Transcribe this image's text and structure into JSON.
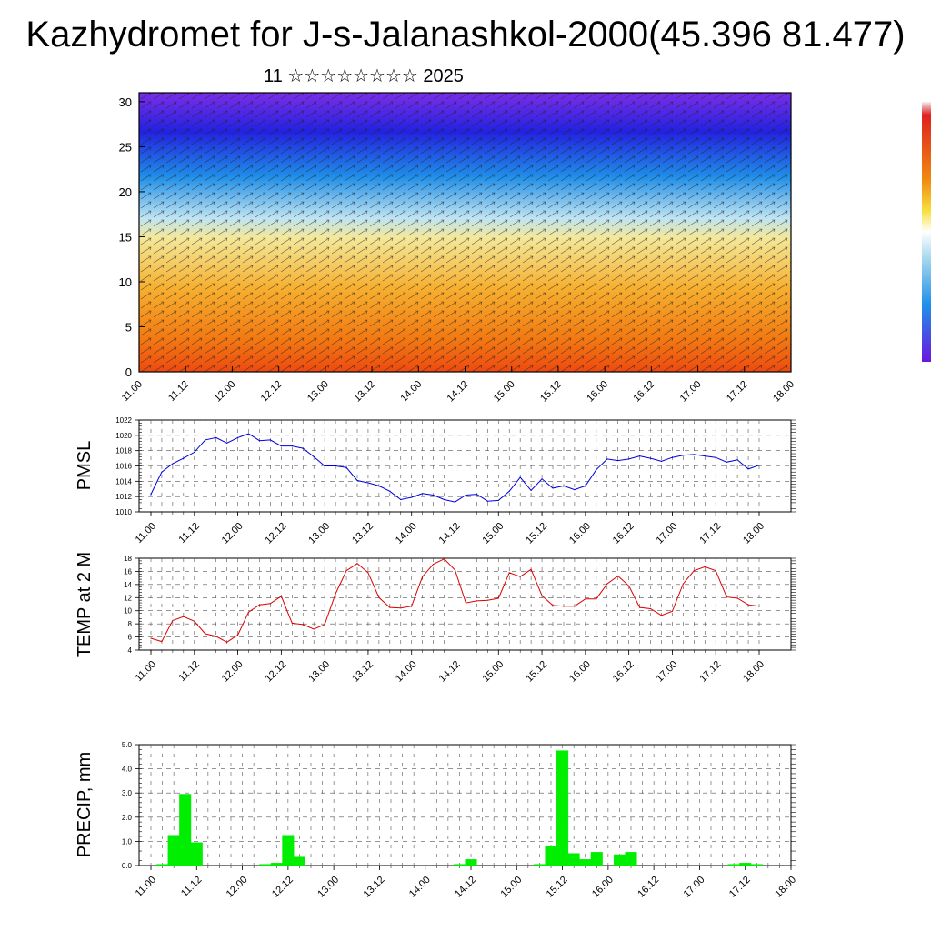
{
  "title": "Kazhydromet for J-s-Jalanashkol-2000(45.396 81.477)",
  "subtitle": "11 ☆☆☆☆☆☆☆☆ 2025",
  "colors": {
    "pmsl_line": "#0000dd",
    "temp_line": "#dd0000",
    "precip_bar": "#00ee00",
    "profile_high": "#6a16e0",
    "profile_mid": "#f0e8a0",
    "profile_low": "#f03a10"
  },
  "chart_data": [
    {
      "id": "profile",
      "type": "heatmap",
      "description_axis_y": "level",
      "ylim": [
        0,
        31
      ],
      "yticks": [
        0,
        5,
        10,
        15,
        20,
        25,
        30
      ],
      "xticks": [
        "11.00",
        "11.12",
        "12.00",
        "12.12",
        "13.00",
        "13.12",
        "14.00",
        "14.12",
        "15.00",
        "15.12",
        "16.00",
        "16.12",
        "17.00",
        "17.12",
        "18.00"
      ],
      "grid": false
    },
    {
      "id": "pmsl",
      "type": "line",
      "ylabel": "PMSL",
      "ylim": [
        1010,
        1022
      ],
      "yticks": [
        1010,
        1012,
        1014,
        1016,
        1018,
        1020,
        1022
      ],
      "xticks": [
        "11.00",
        "11.12",
        "12.00",
        "12.12",
        "13.00",
        "13.12",
        "14.00",
        "14.12",
        "15.00",
        "15.12",
        "16.00",
        "16.12",
        "17.00",
        "17.12",
        "18.00"
      ],
      "x_hours_step": 3,
      "values": [
        1012.3,
        1015.2,
        1016.3,
        1017.0,
        1017.8,
        1019.4,
        1019.7,
        1019.0,
        1019.7,
        1020.2,
        1019.3,
        1019.4,
        1018.6,
        1018.6,
        1018.3,
        1017.2,
        1016.0,
        1016.0,
        1015.8,
        1014.1,
        1013.8,
        1013.4,
        1012.7,
        1011.6,
        1011.9,
        1012.4,
        1012.2,
        1011.6,
        1011.3,
        1012.2,
        1012.3,
        1011.4,
        1011.5,
        1012.7,
        1014.5,
        1012.8,
        1014.3,
        1013.1,
        1013.4,
        1012.9,
        1013.4,
        1015.5,
        1016.9,
        1016.7,
        1016.9,
        1017.3,
        1017.0,
        1016.6,
        1017.1,
        1017.4,
        1017.5,
        1017.3,
        1017.1,
        1016.5,
        1016.8,
        1015.6,
        1016.1
      ],
      "grid": true
    },
    {
      "id": "temp",
      "type": "line",
      "ylabel": "TEMP at 2 M",
      "ylim": [
        4,
        18
      ],
      "yticks": [
        4,
        6,
        8,
        10,
        12,
        14,
        16,
        18
      ],
      "xticks": [
        "11.00",
        "11.12",
        "12.00",
        "12.12",
        "13.00",
        "13.12",
        "14.00",
        "14.12",
        "15.00",
        "15.12",
        "16.00",
        "16.12",
        "17.00",
        "17.12",
        "18.00"
      ],
      "x_hours_step": 3,
      "values": [
        5.8,
        5.3,
        8.5,
        9.1,
        8.4,
        6.5,
        6.1,
        5.2,
        6.3,
        9.8,
        10.9,
        11.1,
        12.2,
        8.1,
        7.9,
        7.2,
        7.9,
        12.6,
        16.1,
        17.2,
        15.8,
        12.0,
        10.5,
        10.4,
        10.7,
        15.2,
        17.1,
        17.9,
        16.2,
        11.2,
        11.5,
        11.6,
        11.9,
        15.8,
        15.2,
        16.3,
        12.3,
        10.8,
        10.7,
        10.7,
        11.8,
        11.8,
        14.1,
        15.3,
        13.8,
        10.5,
        10.3,
        9.3,
        9.9,
        14.1,
        16.1,
        16.7,
        16.1,
        12.1,
        11.9,
        10.9,
        10.7
      ],
      "grid": true
    },
    {
      "id": "precip",
      "type": "bar",
      "ylabel": "PRECIP, mm",
      "ylim": [
        0,
        5
      ],
      "yticks": [
        "0.0",
        "1.0",
        "2.0",
        "3.0",
        "4.0",
        "5.0"
      ],
      "xticks": [
        "11.00",
        "11.12",
        "12.00",
        "12.12",
        "13.00",
        "13.12",
        "14.00",
        "14.12",
        "15.00",
        "15.12",
        "16.00",
        "16.12",
        "17.00",
        "17.12",
        "18.00"
      ],
      "x_hours_step": 3,
      "values": [
        0,
        0.05,
        1.25,
        2.95,
        0.95,
        0,
        0,
        0,
        0,
        0,
        0.05,
        0.1,
        1.25,
        0.35,
        0,
        0,
        0,
        0,
        0,
        0,
        0,
        0,
        0,
        0,
        0,
        0,
        0,
        0.05,
        0.25,
        0,
        0,
        0,
        0,
        0,
        0.05,
        0.8,
        4.75,
        0.5,
        0.25,
        0.55,
        0,
        0.45,
        0.55,
        0,
        0,
        0,
        0,
        0,
        0,
        0,
        0,
        0.05,
        0.1,
        0.05,
        0,
        0,
        0
      ],
      "grid": true
    }
  ]
}
